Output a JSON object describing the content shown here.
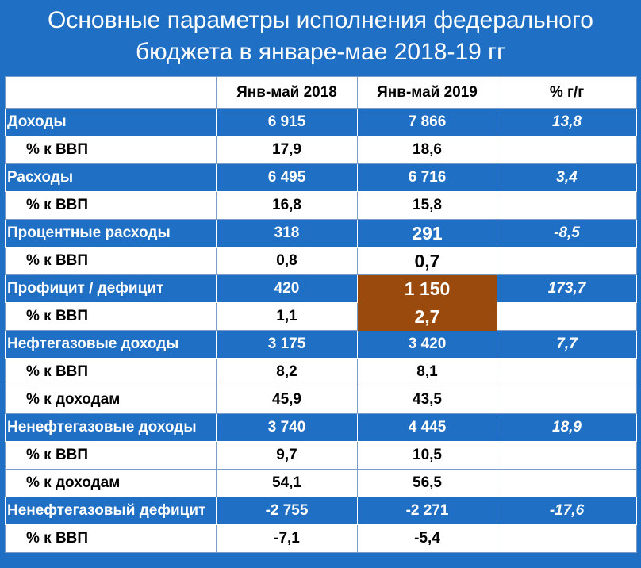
{
  "title_line1": "Основные параметры исполнения федерального",
  "title_line2": "бюджета в январе-мае 2018-19 гг",
  "headers": [
    "",
    "Янв-май 2018",
    "Янв-май 2019",
    "% г/г"
  ],
  "rows": [
    {
      "label": "Доходы",
      "v2018": "6 915",
      "v2019": "7 866",
      "pct": "13,8"
    },
    {
      "label": "% к ВВП",
      "v2018": "17,9",
      "v2019": "18,6",
      "pct": ""
    },
    {
      "label": "Расходы",
      "v2018": "6 495",
      "v2019": "6 716",
      "pct": "3,4"
    },
    {
      "label": "% к ВВП",
      "v2018": "16,8",
      "v2019": "15,8",
      "pct": ""
    },
    {
      "label": "Процентные расходы",
      "v2018": "318",
      "v2019": "291",
      "pct": "-8,5"
    },
    {
      "label": "% к ВВП",
      "v2018": "0,8",
      "v2019": "0,7",
      "pct": ""
    },
    {
      "label": "Профицит / дефицит",
      "v2018": "420",
      "v2019": "1 150",
      "pct": "173,7"
    },
    {
      "label": "% к ВВП",
      "v2018": "1,1",
      "v2019": "2,7",
      "pct": ""
    },
    {
      "label": "Нефтегазовые доходы",
      "v2018": "3 175",
      "v2019": "3 420",
      "pct": "7,7"
    },
    {
      "label": "% к ВВП",
      "v2018": "8,2",
      "v2019": "8,1",
      "pct": ""
    },
    {
      "label": "% к доходам",
      "v2018": "45,9",
      "v2019": "43,5",
      "pct": ""
    },
    {
      "label": "Ненефтегазовые доходы",
      "v2018": "3 740",
      "v2019": "4 445",
      "pct": "18,9"
    },
    {
      "label": "% к ВВП",
      "v2018": "9,7",
      "v2019": "10,5",
      "pct": ""
    },
    {
      "label": "% к доходам",
      "v2018": "54,1",
      "v2019": "56,5",
      "pct": ""
    },
    {
      "label": "Ненефтегазовый дефицит",
      "v2018": "-2 755",
      "v2019": "-2 271",
      "pct": "-17,6"
    },
    {
      "label": "% к ВВП",
      "v2018": "-7,1",
      "v2019": "-5,4",
      "pct": ""
    }
  ],
  "colors": {
    "header_blue": "#1f6fc4",
    "highlight": "#9b4a0d",
    "white": "#ffffff"
  }
}
